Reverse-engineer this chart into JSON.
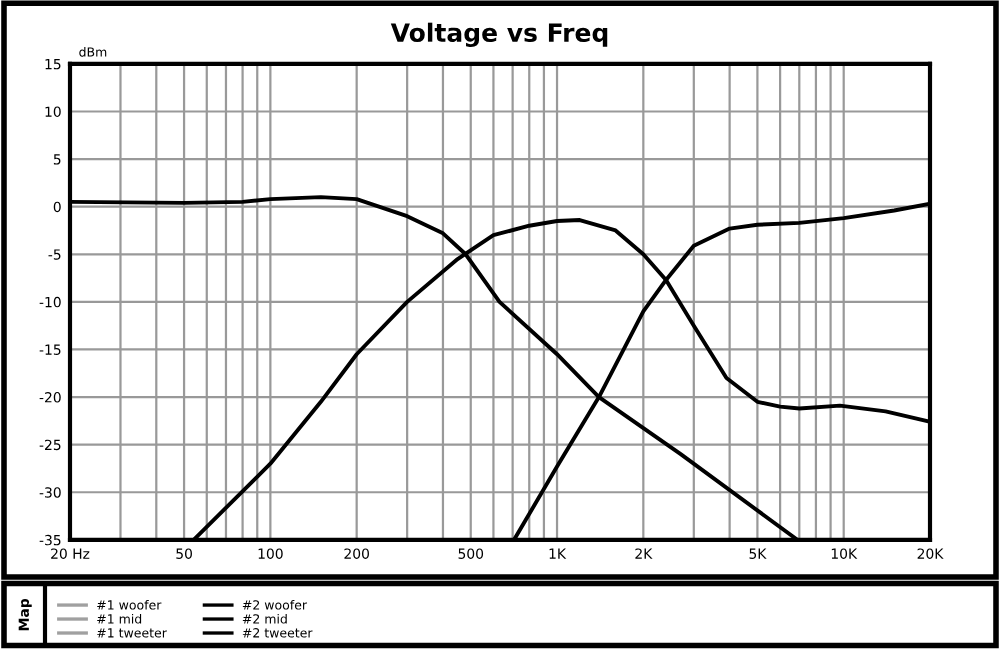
{
  "chart_data": {
    "type": "line",
    "title": "Voltage vs Freq",
    "ylabel": "dBm",
    "legend_title": "Map",
    "log": "x",
    "grid": true,
    "legend": "bottom",
    "line_style": "solid",
    "marker": "none",
    "xlim": [
      20,
      20000
    ],
    "ylim": [
      -35,
      15
    ],
    "xticks": [
      {
        "value": 20,
        "label": "20 Hz"
      },
      50,
      100,
      200,
      500,
      {
        "value": 1000,
        "label": "1K"
      },
      {
        "value": 2000,
        "label": "2K"
      },
      {
        "value": 5000,
        "label": "5K"
      },
      {
        "value": 10000,
        "label": "10K"
      },
      {
        "value": 20000,
        "label": "20K"
      }
    ],
    "yticks": [
      -35,
      -30,
      -25,
      -20,
      -15,
      -10,
      -5,
      0,
      5,
      10,
      15
    ],
    "series": [
      {
        "name": "#1 woofer",
        "color": "#a0a0a0"
      },
      {
        "name": "#1 mid",
        "color": "#a0a0a0"
      },
      {
        "name": "#1 tweeter",
        "color": "#a0a0a0"
      },
      {
        "name": "#2 woofer",
        "color": "#000000",
        "x": [
          20,
          50,
          80,
          100,
          150,
          200,
          300,
          400,
          480,
          630,
          1000,
          1400,
          2700,
          6900
        ],
        "values": [
          0.5,
          0.4,
          0.5,
          0.8,
          1,
          0.8,
          -1,
          -2.8,
          -5,
          -10,
          -15.5,
          -20,
          -26,
          -35
        ]
      },
      {
        "name": "#2 mid",
        "color": "#000000",
        "x": [
          54,
          100,
          150,
          200,
          300,
          450,
          600,
          800,
          1000,
          1200,
          1600,
          2000,
          2400,
          3000,
          3900,
          5000,
          6000,
          7000,
          9700,
          14000,
          20000
        ],
        "values": [
          -35,
          -27,
          -20.5,
          -15.5,
          -10,
          -5.5,
          -3,
          -2,
          -1.5,
          -1.4,
          -2.5,
          -5,
          -7.7,
          -12.5,
          -18,
          -20.5,
          -21,
          -21.2,
          -20.9,
          -21.5,
          -22.6
        ]
      },
      {
        "name": "#2 tweeter",
        "color": "#000000",
        "x": [
          708,
          1000,
          1400,
          2000,
          2400,
          3000,
          4000,
          5000,
          7000,
          10000,
          15000,
          20000
        ],
        "values": [
          -35,
          -27.3,
          -20,
          -11,
          -7.7,
          -4.1,
          -2.3,
          -1.9,
          -1.7,
          -1.2,
          -0.4,
          0.3
        ]
      }
    ]
  }
}
